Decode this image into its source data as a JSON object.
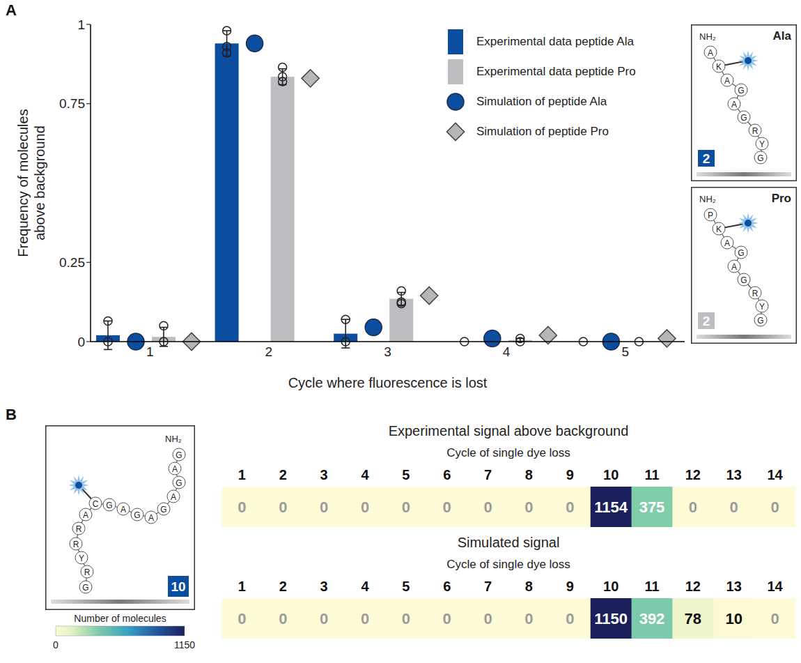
{
  "panel_labels": [
    "A",
    "B"
  ],
  "chart_data": [
    {
      "type": "bar",
      "y_label": "Frequency of molecules above background",
      "x_label": "Cycle where fluorescence is lost",
      "categories": [
        1,
        2,
        3,
        4,
        5
      ],
      "ylim": [
        0,
        1
      ],
      "yticks": [
        0,
        0.25,
        0.75,
        1
      ],
      "legend": "top-right",
      "series": [
        {
          "name": "Experimental data peptide Ala",
          "type": "bar",
          "color": "#0b4d9f",
          "values": [
            0.02,
            0.94,
            0.025,
            0,
            0
          ],
          "error": [
            0.045,
            0.04,
            0.045,
            0,
            0
          ],
          "replicates": [
            [
              0.065,
              0
            ],
            [
              0.98,
              0.93,
              0.91
            ],
            [
              0.07,
              0
            ],
            [
              0
            ],
            [
              0
            ]
          ]
        },
        {
          "name": "Experimental data peptide Pro",
          "type": "bar",
          "color": "#bcbdc0",
          "values": [
            0.015,
            0.835,
            0.135,
            0.005,
            0
          ],
          "error": [
            0.03,
            0.025,
            0.02,
            0.005,
            0
          ],
          "replicates": [
            [
              0.05,
              0
            ],
            [
              0.865,
              0.835,
              0.82
            ],
            [
              0.16,
              0.125,
              0.12
            ],
            [
              0.01,
              0
            ],
            [
              0
            ]
          ]
        },
        {
          "name": "Simulation of peptide Ala",
          "type": "scatter",
          "marker": "circle",
          "color": "#0b4d9f",
          "values": [
            0,
            0.94,
            0.045,
            0.01,
            0
          ]
        },
        {
          "name": "Simulation of peptide Pro",
          "type": "scatter",
          "marker": "diamond",
          "color": "#b5b6b8",
          "values": [
            0,
            0.83,
            0.145,
            0.02,
            0.01
          ]
        }
      ]
    },
    {
      "type": "heatmap",
      "x_label": "Cycle of single dye loss",
      "categories": [
        1,
        2,
        3,
        4,
        5,
        6,
        7,
        8,
        9,
        10,
        11,
        12,
        13,
        14
      ],
      "data_labels": true,
      "rows": [
        {
          "name": "Experimental signal above background",
          "values": [
            0,
            0,
            0,
            0,
            0,
            0,
            0,
            0,
            0,
            1154,
            375,
            0,
            0,
            0
          ]
        },
        {
          "name": "Simulated signal",
          "values": [
            0,
            0,
            0,
            0,
            0,
            0,
            0,
            0,
            0,
            1150,
            392,
            78,
            10,
            0
          ]
        }
      ],
      "colorbar": {
        "label": "Number of molecules",
        "range": [
          0,
          1150
        ],
        "ticks": [
          0,
          1150
        ]
      }
    }
  ],
  "peptides": [
    {
      "title": "Ala",
      "n_terminus": "NH₂",
      "sequence": [
        "A",
        "K",
        "A",
        "G",
        "A",
        "G",
        "R",
        "Y",
        "G"
      ],
      "badge": 2,
      "color": "#0b4d9f"
    },
    {
      "title": "Pro",
      "n_terminus": "NH₂",
      "sequence": [
        "P",
        "K",
        "A",
        "G",
        "A",
        "G",
        "R",
        "Y",
        "G"
      ],
      "badge": 2,
      "color": "#bcbdc0"
    },
    {
      "n_terminus": "NH₂",
      "sequence": [
        "G",
        "A",
        "G",
        "A",
        "G",
        "A",
        "G",
        "A",
        "G",
        "C",
        "A",
        "R",
        "R",
        "Y",
        "R",
        "G"
      ],
      "badge": 10,
      "color": "#0b4d9f"
    }
  ]
}
